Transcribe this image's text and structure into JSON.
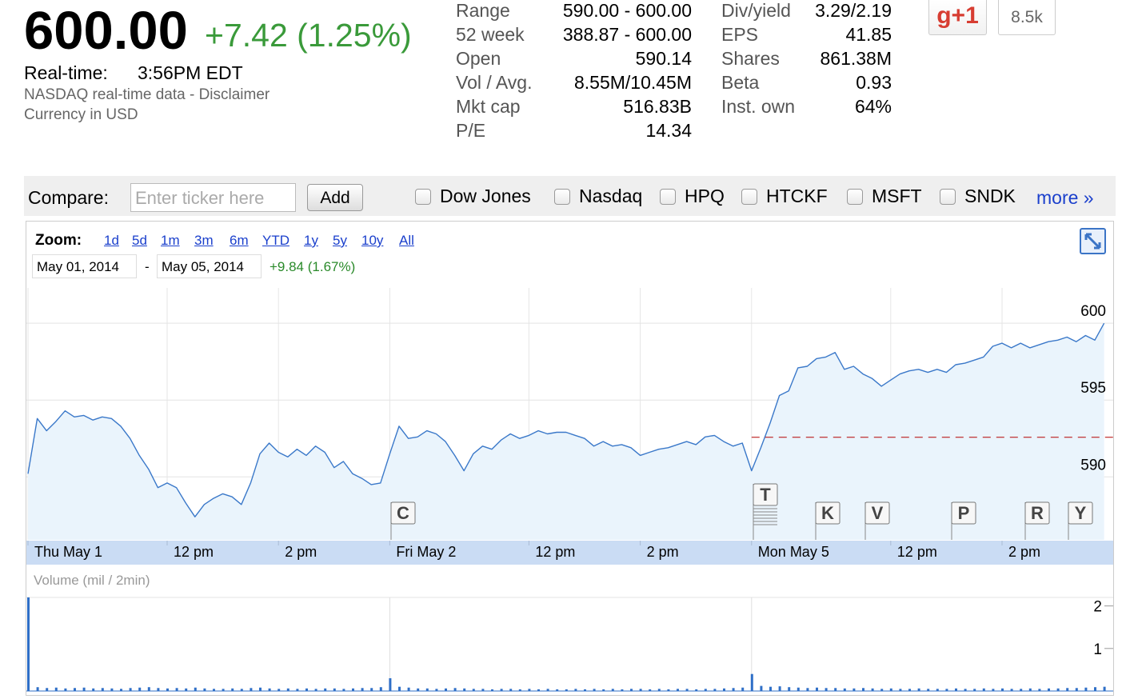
{
  "header": {
    "price": "600.00",
    "change": "+7.42 (1.25%)",
    "realtime_label": "Real-time:",
    "time": "3:56PM EDT",
    "source": "NASDAQ real-time data - ",
    "disclaimer": "Disclaimer",
    "currency": "Currency in USD"
  },
  "stats": {
    "left": [
      {
        "label": "Range",
        "value": "590.00 - 600.00"
      },
      {
        "label": "52 week",
        "value": "388.87 - 600.00"
      },
      {
        "label": "Open",
        "value": "590.14"
      },
      {
        "label": "Vol / Avg.",
        "value": "8.55M/10.45M"
      },
      {
        "label": "Mkt cap",
        "value": "516.83B"
      },
      {
        "label": "P/E",
        "value": "14.34"
      }
    ],
    "right": [
      {
        "label": "Div/yield",
        "value": "3.29/2.19"
      },
      {
        "label": "EPS",
        "value": "41.85"
      },
      {
        "label": "Shares",
        "value": "861.38M"
      },
      {
        "label": "Beta",
        "value": "0.93"
      },
      {
        "label": "Inst. own",
        "value": "64%"
      }
    ]
  },
  "social": {
    "button": "g+1",
    "count": "8.5k"
  },
  "compare": {
    "label": "Compare:",
    "placeholder": "Enter ticker here",
    "button": "Add",
    "options": [
      "Dow Jones",
      "Nasdaq",
      "HPQ",
      "HTCKF",
      "MSFT",
      "SNDK"
    ],
    "more": "more »"
  },
  "zoom": {
    "label": "Zoom:",
    "ranges": [
      "1d",
      "5d",
      "1m",
      "3m",
      "6m",
      "YTD",
      "1y",
      "5y",
      "10y",
      "All"
    ],
    "from": "May 01, 2014",
    "separator": "-",
    "to": "May 05, 2014",
    "change": "+9.84 (1.67%)"
  },
  "chart_data": [
    {
      "type": "line",
      "categories": [
        "Thu May 1",
        null,
        null,
        null,
        null,
        null,
        null,
        null,
        null,
        null,
        null,
        null,
        null,
        null,
        null,
        "12 pm",
        null,
        null,
        null,
        null,
        null,
        null,
        null,
        null,
        null,
        null,
        null,
        "2 pm",
        null,
        null,
        null,
        null,
        null,
        null,
        null,
        null,
        null,
        null,
        null,
        "Fri May 2",
        null,
        null,
        null,
        null,
        null,
        null,
        null,
        null,
        null,
        null,
        null,
        null,
        null,
        null,
        "12 pm",
        null,
        null,
        null,
        null,
        null,
        null,
        null,
        null,
        null,
        null,
        null,
        "2 pm",
        null,
        null,
        null,
        null,
        null,
        null,
        null,
        null,
        null,
        null,
        null,
        "Mon May 5",
        null,
        null,
        null,
        null,
        null,
        null,
        null,
        null,
        null,
        null,
        null,
        null,
        null,
        null,
        "12 pm",
        null,
        null,
        null,
        null,
        null,
        null,
        null,
        null,
        null,
        null,
        null,
        "2 pm",
        null,
        null,
        null,
        null,
        null,
        null,
        null,
        null,
        null,
        null,
        null
      ],
      "values": [
        590.2,
        593.8,
        593.0,
        593.6,
        594.3,
        593.9,
        594.0,
        593.7,
        593.9,
        593.8,
        593.3,
        592.5,
        591.4,
        590.5,
        589.3,
        589.6,
        589.3,
        588.3,
        587.4,
        588.2,
        588.6,
        588.9,
        588.7,
        588.2,
        589.6,
        591.5,
        592.2,
        591.6,
        591.3,
        591.8,
        591.4,
        592.0,
        591.6,
        590.6,
        591.0,
        590.2,
        589.9,
        589.5,
        589.6,
        591.5,
        593.3,
        592.5,
        592.6,
        593.0,
        592.8,
        592.3,
        591.4,
        590.4,
        591.5,
        592.0,
        591.8,
        592.4,
        592.8,
        592.5,
        592.7,
        593.0,
        592.8,
        592.9,
        592.9,
        592.7,
        592.5,
        592.0,
        592.3,
        592.0,
        592.1,
        591.9,
        591.4,
        591.6,
        591.8,
        591.9,
        592.1,
        592.3,
        592.1,
        592.6,
        592.7,
        592.3,
        592.0,
        592.2,
        590.4,
        591.9,
        593.5,
        595.3,
        595.6,
        597.1,
        597.2,
        597.7,
        597.8,
        598.1,
        597.0,
        597.2,
        596.7,
        596.4,
        595.9,
        596.3,
        596.7,
        596.9,
        597.0,
        596.8,
        597.0,
        596.8,
        597.3,
        597.4,
        597.6,
        597.8,
        598.5,
        598.7,
        598.4,
        598.7,
        598.4,
        598.6,
        598.8,
        598.9,
        599.1,
        598.8,
        599.2,
        598.9,
        600.0
      ],
      "color": "#3a78c9",
      "fill": "#eaf4fc",
      "ylim": [
        585.9,
        602.3
      ],
      "yticks": [
        590,
        595,
        600
      ],
      "grid": true,
      "prev_close": 592.58,
      "prev_close_color": "#b40000",
      "event_flags": [
        "C",
        "T",
        "K",
        "V",
        "P",
        "R",
        "Y"
      ]
    },
    {
      "type": "bar",
      "title": "Volume (mil / 2min)",
      "values": [
        2.2,
        0.09,
        0.07,
        0.08,
        0.06,
        0.07,
        0.08,
        0.06,
        0.07,
        0.06,
        0.05,
        0.07,
        0.08,
        0.09,
        0.07,
        0.06,
        0.07,
        0.06,
        0.08,
        0.06,
        0.05,
        0.05,
        0.06,
        0.05,
        0.07,
        0.08,
        0.06,
        0.05,
        0.06,
        0.05,
        0.06,
        0.05,
        0.06,
        0.06,
        0.05,
        0.06,
        0.07,
        0.07,
        0.09,
        0.3,
        0.1,
        0.08,
        0.06,
        0.06,
        0.05,
        0.06,
        0.07,
        0.06,
        0.05,
        0.05,
        0.04,
        0.05,
        0.05,
        0.04,
        0.05,
        0.04,
        0.05,
        0.04,
        0.04,
        0.05,
        0.04,
        0.05,
        0.04,
        0.05,
        0.04,
        0.05,
        0.05,
        0.04,
        0.05,
        0.04,
        0.05,
        0.05,
        0.04,
        0.05,
        0.05,
        0.06,
        0.07,
        0.08,
        0.4,
        0.12,
        0.1,
        0.11,
        0.09,
        0.08,
        0.07,
        0.08,
        0.07,
        0.07,
        0.06,
        0.06,
        0.07,
        0.06,
        0.05,
        0.06,
        0.05,
        0.05,
        0.06,
        0.05,
        0.05,
        0.05,
        0.06,
        0.05,
        0.05,
        0.06,
        0.05,
        0.06,
        0.05,
        0.05,
        0.06,
        0.05,
        0.06,
        0.06,
        0.07,
        0.07,
        0.08,
        0.09,
        0.1
      ],
      "color": "#2f6fc7",
      "ylim": [
        0,
        2.2
      ],
      "yticks": [
        1,
        2
      ]
    }
  ]
}
